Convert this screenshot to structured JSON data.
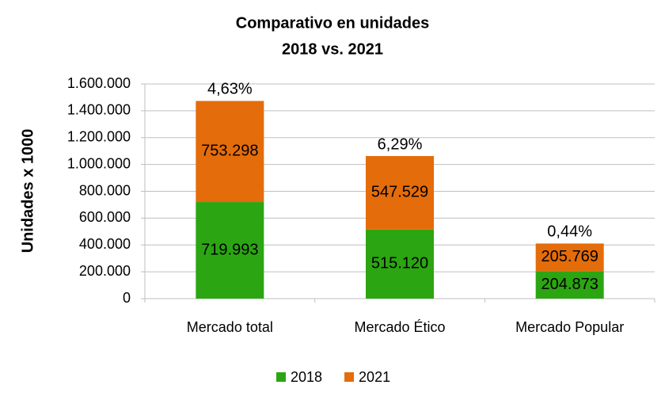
{
  "chart_data": {
    "type": "stacked_bar",
    "title": "Comparativo en unidades",
    "subtitle": "2018 vs. 2021",
    "y_label": "Unidades x 1000",
    "categories": [
      "Mercado total",
      "Mercado Ético",
      "Mercado Popular"
    ],
    "series": [
      {
        "name": "2018",
        "color": "#2ca512",
        "values": [
          719993,
          515120,
          204873
        ],
        "value_labels": [
          "719.993",
          "515.120",
          "204.873"
        ]
      },
      {
        "name": "2021",
        "color": "#e46c0a",
        "values": [
          753298,
          547529,
          205769
        ],
        "value_labels": [
          "753.298",
          "547.529",
          "205.769"
        ]
      }
    ],
    "annotations": [
      "4,63%",
      "6,29%",
      "0,44%"
    ],
    "ylim": [
      0,
      1600000
    ],
    "yticks": [
      0,
      {
        "value": 200000,
        "label": "200.000"
      },
      {
        "value": 400000,
        "label": "400.000"
      },
      {
        "value": 600000,
        "label": "600.000"
      },
      {
        "value": 800000,
        "label": "800.000"
      },
      {
        "value": 1000000,
        "label": "1.000.000"
      },
      {
        "value": 1200000,
        "label": "1.200.000"
      },
      {
        "value": 1400000,
        "label": "1.400.000"
      },
      {
        "value": 1600000,
        "label": "1.600.000"
      }
    ],
    "grid": true,
    "legend": "bottom"
  }
}
